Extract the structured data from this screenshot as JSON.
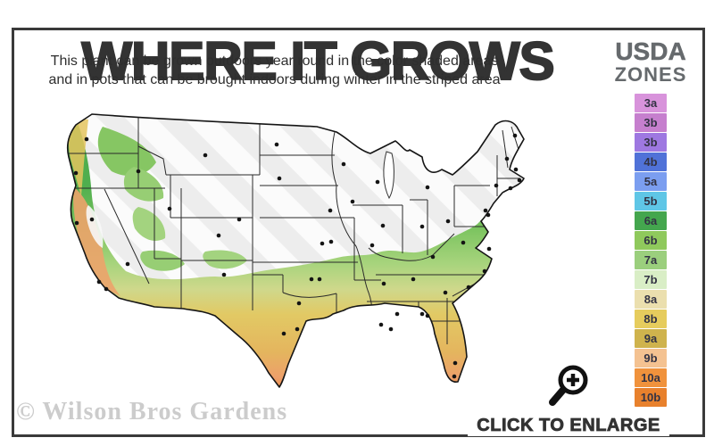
{
  "title": "WHERE IT GROWS",
  "subtitle": {
    "line1": "This plant can be grown outdoors year round in the color shaded areas",
    "line2": "and in pots that can be brought indoors during winter in the striped area"
  },
  "legend": {
    "heading1": "USDA",
    "heading2": "ZONES",
    "zones": [
      {
        "label": "3a",
        "color": "#d893db"
      },
      {
        "label": "3b",
        "color": "#c67fce"
      },
      {
        "label": "3b",
        "color": "#9e78e1"
      },
      {
        "label": "4b",
        "color": "#5072d8"
      },
      {
        "label": "5a",
        "color": "#7b9ef0"
      },
      {
        "label": "5b",
        "color": "#5fc6e6"
      },
      {
        "label": "6a",
        "color": "#44a64e"
      },
      {
        "label": "6b",
        "color": "#8fc95c"
      },
      {
        "label": "7a",
        "color": "#9bcf7d"
      },
      {
        "label": "7b",
        "color": "#d9eec6"
      },
      {
        "label": "8a",
        "color": "#ebdfae"
      },
      {
        "label": "8b",
        "color": "#e6cc5d"
      },
      {
        "label": "9a",
        "color": "#cfb34d"
      },
      {
        "label": "9b",
        "color": "#f4c291"
      },
      {
        "label": "10a",
        "color": "#f0923c"
      },
      {
        "label": "10b",
        "color": "#e8812d"
      }
    ]
  },
  "map": {
    "striped_area_meaning": "grow in pots, bring indoors during winter",
    "shaded_area_meaning": "grows outdoors year round",
    "city_dots": [
      [
        42,
        44
      ],
      [
        30,
        82
      ],
      [
        100,
        80
      ],
      [
        175,
        62
      ],
      [
        255,
        50
      ],
      [
        258,
        88
      ],
      [
        330,
        72
      ],
      [
        368,
        92
      ],
      [
        424,
        98
      ],
      [
        315,
        124
      ],
      [
        340,
        114
      ],
      [
        31,
        138
      ],
      [
        48,
        134
      ],
      [
        135,
        122
      ],
      [
        213,
        134
      ],
      [
        190,
        152
      ],
      [
        306,
        161
      ],
      [
        316,
        159
      ],
      [
        362,
        163
      ],
      [
        374,
        141
      ],
      [
        418,
        142
      ],
      [
        447,
        136
      ],
      [
        88,
        184
      ],
      [
        196,
        196
      ],
      [
        294,
        201
      ],
      [
        303,
        201
      ],
      [
        375,
        206
      ],
      [
        408,
        201
      ],
      [
        430,
        176
      ],
      [
        464,
        160
      ],
      [
        493,
        167
      ],
      [
        488,
        192
      ],
      [
        470,
        210
      ],
      [
        444,
        216
      ],
      [
        424,
        242
      ],
      [
        390,
        240
      ],
      [
        372,
        252
      ],
      [
        383,
        257
      ],
      [
        56,
        204
      ],
      [
        64,
        212
      ],
      [
        280,
        228
      ],
      [
        263,
        262
      ],
      [
        278,
        257
      ],
      [
        418,
        240
      ],
      [
        455,
        295
      ],
      [
        454,
        310
      ],
      [
        489,
        124
      ],
      [
        501,
        96
      ],
      [
        492,
        129
      ],
      [
        517,
        99
      ],
      [
        527,
        90
      ],
      [
        523,
        78
      ],
      [
        513,
        66
      ],
      [
        522,
        40
      ]
    ]
  },
  "watermark": "© Wilson Bros Gardens",
  "cta": {
    "label": "CLICK TO ENLARGE",
    "icon": "magnifier-plus-icon"
  }
}
